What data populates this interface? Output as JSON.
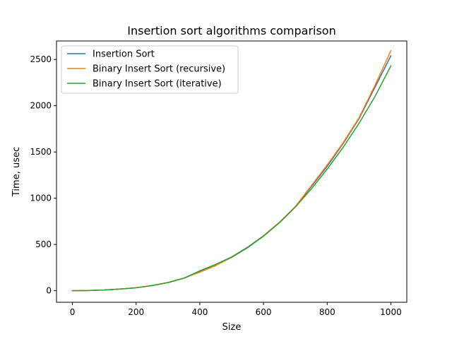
{
  "chart_data": {
    "type": "line",
    "title": "Insertion sort algorithms comparison",
    "xlabel": "Size",
    "ylabel": "Time, usec",
    "xlim": [
      -50,
      1050
    ],
    "ylim": [
      -125,
      2700
    ],
    "xticks": [
      0,
      200,
      400,
      600,
      800,
      1000
    ],
    "yticks": [
      0,
      500,
      1000,
      1500,
      2000,
      2500
    ],
    "grid": false,
    "legend_position": "top-left",
    "x": [
      0,
      50,
      100,
      150,
      200,
      250,
      300,
      350,
      400,
      450,
      500,
      550,
      600,
      650,
      700,
      750,
      800,
      850,
      900,
      950,
      1000
    ],
    "series": [
      {
        "name": "Insertion Sort",
        "color": "#1f77b4",
        "values": [
          0,
          2,
          8,
          18,
          32,
          55,
          88,
          135,
          205,
          275,
          360,
          465,
          590,
          735,
          905,
          1125,
          1345,
          1590,
          1860,
          2200,
          2540
        ]
      },
      {
        "name": "Binary Insert Sort (recursive)",
        "color": "#ff7f0e",
        "values": [
          0,
          2,
          8,
          18,
          33,
          56,
          90,
          137,
          200,
          272,
          362,
          470,
          595,
          740,
          910,
          1135,
          1360,
          1600,
          1870,
          2220,
          2595
        ]
      },
      {
        "name": "Binary Insert Sort (iterative)",
        "color": "#2ca02c",
        "values": [
          0,
          2,
          8,
          18,
          32,
          55,
          88,
          135,
          215,
          285,
          365,
          470,
          590,
          735,
          905,
          1100,
          1315,
          1550,
          1810,
          2100,
          2430
        ]
      }
    ]
  }
}
